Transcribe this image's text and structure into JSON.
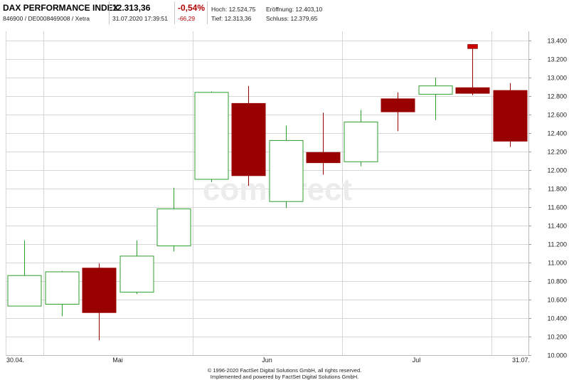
{
  "header": {
    "name": "DAX PERFORMANCE INDEX",
    "ids": "846900 / DE0008469008 / Xetra",
    "price": "12.313,36",
    "datetime": "31.07.2020 17:39:51",
    "change_pct": "-0,54%",
    "change_abs": "-66,29",
    "high": "Hoch: 12.524,75",
    "open": "Eröffnung: 12.403,10",
    "low": "Tief: 12.313,36",
    "close": "Schluss: 12.379,65"
  },
  "watermark": "comdirect",
  "footer": {
    "line1": "© 1996-2020 FactSet Digital Solutions GmbH, all rights reserved.",
    "line2": "Implemented and powered by FactSet Digital Solutions GmbH."
  },
  "colors": {
    "up": "#2e9e2e",
    "down": "#990000",
    "grid": "#d6d6d6",
    "axis": "#bcbcbc",
    "marker": "#cc0000"
  },
  "chart_data": {
    "type": "candlestick",
    "title": "",
    "xlabel": "",
    "ylabel": "",
    "ylim": [
      10000,
      13500
    ],
    "y_ticks": [
      10000,
      10200,
      10400,
      10600,
      10800,
      11000,
      11200,
      11400,
      11600,
      11800,
      12000,
      12200,
      12400,
      12600,
      12800,
      13000,
      13200,
      13400
    ],
    "y_tick_labels": [
      "10.000",
      "10.200",
      "10.400",
      "10.600",
      "10.800",
      "11.000",
      "11.200",
      "11.400",
      "11.600",
      "11.800",
      "12.000",
      "12.200",
      "12.400",
      "12.600",
      "12.800",
      "13.000",
      "13.200",
      "13.400"
    ],
    "x_ticks": [
      {
        "label": "30.04.",
        "index": -0.5
      },
      {
        "label": "Mai",
        "index": 2.5
      },
      {
        "label": "Jun",
        "index": 6.5
      },
      {
        "label": "Jul",
        "index": 10.5
      },
      {
        "label": "31.07.",
        "index": 13.3
      }
    ],
    "v_grid_at": [
      -0.5,
      0.5,
      4.5,
      8.5,
      12.5
    ],
    "period": "weekly",
    "candles": [
      {
        "open": 10530,
        "high": 11240,
        "low": 10530,
        "close": 10860
      },
      {
        "open": 10550,
        "high": 10910,
        "low": 10420,
        "close": 10900
      },
      {
        "open": 10940,
        "high": 10990,
        "low": 10160,
        "close": 10460
      },
      {
        "open": 10680,
        "high": 11240,
        "low": 10660,
        "close": 11070
      },
      {
        "open": 11180,
        "high": 11810,
        "low": 11120,
        "close": 11580
      },
      {
        "open": 11900,
        "high": 12850,
        "low": 11870,
        "close": 12840
      },
      {
        "open": 12720,
        "high": 12910,
        "low": 11830,
        "close": 11940
      },
      {
        "open": 11660,
        "high": 12480,
        "low": 11590,
        "close": 12320
      },
      {
        "open": 12190,
        "high": 12620,
        "low": 11950,
        "close": 12080
      },
      {
        "open": 12090,
        "high": 12650,
        "low": 12040,
        "close": 12520
      },
      {
        "open": 12770,
        "high": 12840,
        "low": 12420,
        "close": 12630
      },
      {
        "open": 12820,
        "high": 13000,
        "low": 12540,
        "close": 12910
      },
      {
        "open": 12890,
        "high": 13320,
        "low": 12810,
        "close": 12830
      },
      {
        "open": 12860,
        "high": 12940,
        "low": 12250,
        "close": 12313
      }
    ]
  }
}
